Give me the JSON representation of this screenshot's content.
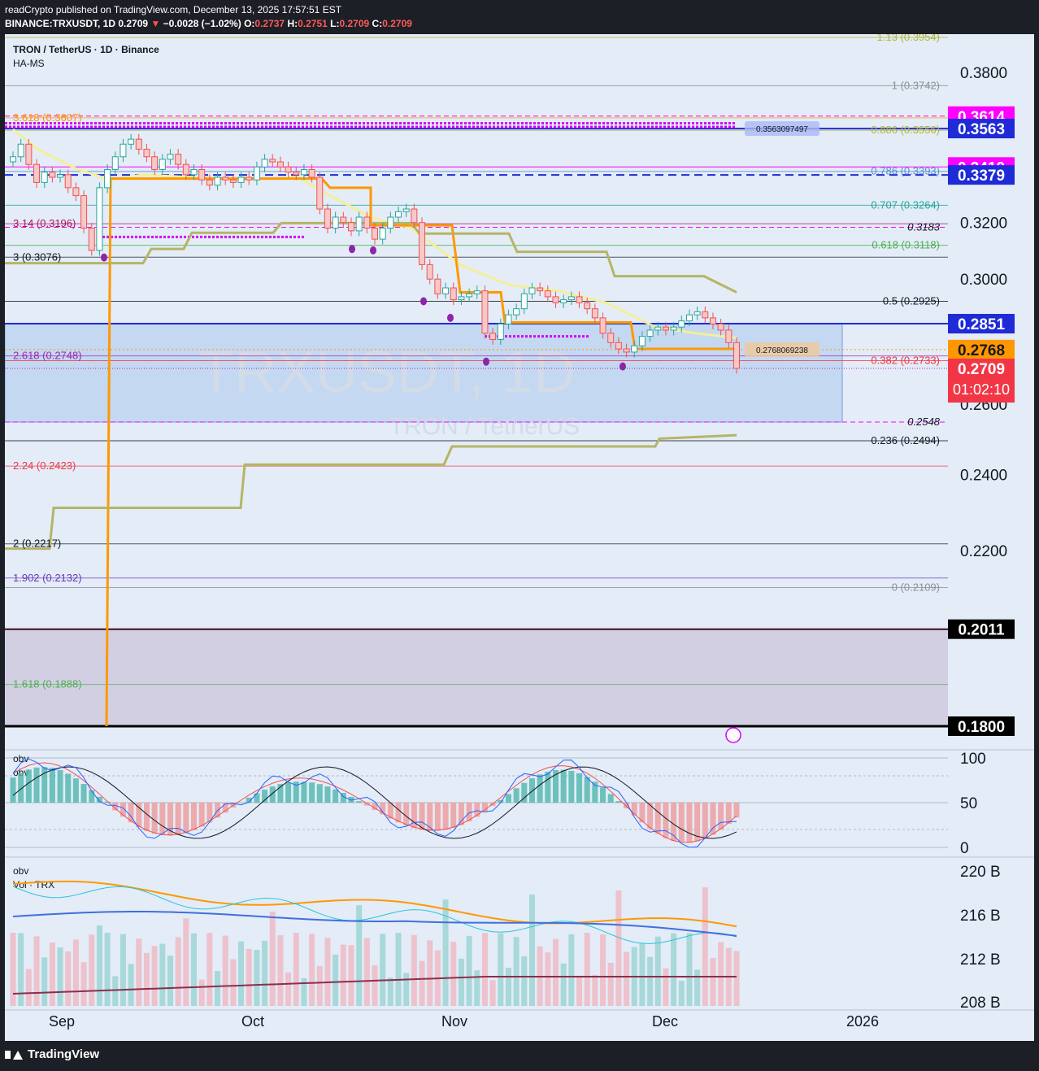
{
  "header": {
    "line1": "readCrypto published on TradingView.com, December 13, 2025 17:57:51 EST",
    "symbol": "BINANCE:TRXUSDT, 1D",
    "price": "0.2709",
    "change": "−0.0028 (−1.02%)",
    "o_label": "O:",
    "o": "0.2737",
    "h_label": "H:",
    "h": "0.2751",
    "l_label": "L:",
    "l": "0.2709",
    "c_label": "C:",
    "c": "0.2709"
  },
  "chart": {
    "title": "TRON / TetherUS · 1D · Binance",
    "indicator": "HA-MS",
    "watermark": "TRXUSDT, 1D",
    "watermark_sub": "TRON / TetherUS",
    "countdown": "01:02:10"
  },
  "chart_data": {
    "type": "candlestick",
    "y_range": [
      0.18,
      0.3954
    ],
    "price_ticks": [
      "0.3800",
      "0.3200",
      "0.3000",
      "0.2600",
      "0.2400",
      "0.2200"
    ],
    "price_badges": [
      {
        "label": "0.3614",
        "value": 0.3614,
        "bg": "#ff00ff",
        "fg": "#ffffff"
      },
      {
        "label": "0.3563",
        "value": 0.3563,
        "bg": "#1e2bd6",
        "fg": "#ffffff"
      },
      {
        "label": "0.3410",
        "value": 0.341,
        "bg": "#ff00ff",
        "fg": "#ffffff"
      },
      {
        "label": "0.3379",
        "value": 0.3379,
        "bg": "#1e2bd6",
        "fg": "#ffffff"
      },
      {
        "label": "0.2851",
        "value": 0.2851,
        "bg": "#1e2bd6",
        "fg": "#ffffff"
      },
      {
        "label": "0.2768",
        "value": 0.2768,
        "bg": "#ff9800",
        "fg": "#131722"
      },
      {
        "label": "0.2709",
        "value": 0.2709,
        "bg": "#f23645",
        "fg": "#ffffff"
      },
      {
        "label": "0.2011",
        "value": 0.2011,
        "bg": "#000000",
        "fg": "#ffffff"
      },
      {
        "label": "0.1800",
        "value": 0.18,
        "bg": "#000000",
        "fg": "#ffffff"
      }
    ],
    "fib_right": [
      {
        "label": "1.13 (0.3954)",
        "value": 0.3954,
        "color": "#b5b532"
      },
      {
        "label": "1 (0.3742)",
        "value": 0.3742,
        "color": "#8d9095"
      },
      {
        "label": "0.886 (0.3556)",
        "value": 0.3556,
        "color": "#b5b532"
      },
      {
        "label": "0.786 (0.3393)",
        "value": 0.3393,
        "color": "#5b8dd6"
      },
      {
        "label": "0.707 (0.3264)",
        "value": 0.3264,
        "color": "#26a69a"
      },
      {
        "label": "0.618 (0.3118)",
        "value": 0.3118,
        "color": "#4caf50"
      },
      {
        "label": "0.5 (0.2925)",
        "value": 0.2925,
        "color": "#131722"
      },
      {
        "label": "0.382 (0.2733)",
        "value": 0.2733,
        "color": "#f23645"
      },
      {
        "label": "0.236 (0.2494)",
        "value": 0.2494,
        "color": "#131722"
      },
      {
        "label": "0 (0.2109)",
        "value": 0.2109,
        "color": "#8d9095"
      }
    ],
    "fib_left": [
      {
        "label": "3.618 (0.3607)",
        "value": 0.3607,
        "color": "#ff9800"
      },
      {
        "label": "3.14 (0.3196)",
        "value": 0.3196,
        "color": "#ad1457"
      },
      {
        "label": "3 (0.3076)",
        "value": 0.3076,
        "color": "#131722"
      },
      {
        "label": "2.618 (0.2748)",
        "value": 0.2748,
        "color": "#9c27b0"
      },
      {
        "label": "2.24 (0.2423)",
        "value": 0.2423,
        "color": "#f23645"
      },
      {
        "label": "2 (0.2217)",
        "value": 0.2217,
        "color": "#131722"
      },
      {
        "label": "1.902 (0.2132)",
        "value": 0.2132,
        "color": "#673ab7"
      },
      {
        "label": "1.618 (0.1888)",
        "value": 0.1888,
        "color": "#4caf50"
      }
    ],
    "extra_labels": [
      {
        "label": "0.3183",
        "value": 0.3183
      },
      {
        "label": "0.2548",
        "value": 0.2548
      }
    ],
    "callouts": [
      {
        "label": "0.3563097497",
        "value": 0.3563
      },
      {
        "label": "0.2768069238",
        "value": 0.2768
      }
    ],
    "x_ticks": [
      "Sep",
      "Oct",
      "Nov",
      "Dec",
      "2026"
    ],
    "close_series": [
      0.345,
      0.35,
      0.342,
      0.335,
      0.339,
      0.337,
      0.338,
      0.333,
      0.33,
      0.318,
      0.31,
      0.333,
      0.34,
      0.345,
      0.35,
      0.352,
      0.348,
      0.345,
      0.34,
      0.344,
      0.346,
      0.342,
      0.338,
      0.34,
      0.336,
      0.334,
      0.337,
      0.336,
      0.335,
      0.337,
      0.336,
      0.341,
      0.344,
      0.343,
      0.341,
      0.339,
      0.338,
      0.34,
      0.337,
      0.325,
      0.318,
      0.322,
      0.32,
      0.317,
      0.322,
      0.318,
      0.314,
      0.318,
      0.322,
      0.324,
      0.325,
      0.32,
      0.305,
      0.3,
      0.295,
      0.297,
      0.293,
      0.294,
      0.295,
      0.296,
      0.282,
      0.28,
      0.285,
      0.288,
      0.29,
      0.295,
      0.297,
      0.296,
      0.294,
      0.292,
      0.293,
      0.294,
      0.292,
      0.29,
      0.287,
      0.282,
      0.279,
      0.277,
      0.276,
      0.278,
      0.281,
      0.283,
      0.284,
      0.283,
      0.284,
      0.286,
      0.288,
      0.289,
      0.287,
      0.285,
      0.283,
      0.279,
      0.2709
    ],
    "oscillator": {
      "label": "obv",
      "ticks": [
        "100",
        "50",
        "0"
      ],
      "range": [
        0,
        100
      ]
    },
    "volume_pane": {
      "label": "obv",
      "sublabel": "Vol · TRX",
      "ticks": [
        "220 B",
        "216 B",
        "212 B",
        "208 B"
      ]
    }
  },
  "footer": {
    "brand": "TradingView"
  },
  "colors": {
    "bg": "#e3ecf7",
    "up": "#26a69a",
    "down": "#ef5350",
    "orange": "#ff9800",
    "olive": "#b5b565",
    "yellow": "#f3ef9a",
    "magenta": "#d500f9"
  }
}
